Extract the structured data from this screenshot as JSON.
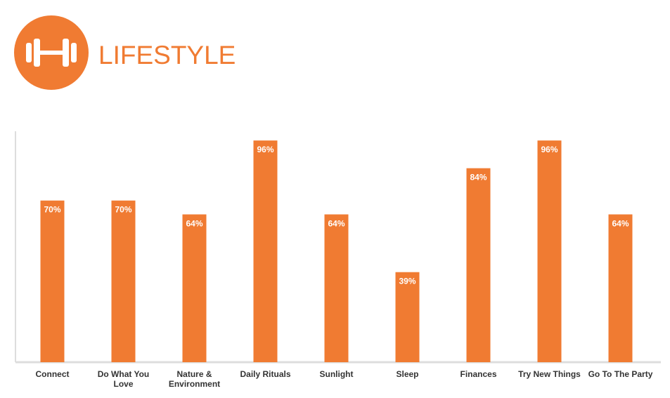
{
  "chart_data": {
    "type": "bar",
    "title": "LIFESTYLE",
    "categories": [
      "Connect",
      "Do What You Love",
      "Nature & Environment",
      "Daily Rituals",
      "Sunlight",
      "Sleep",
      "Finances",
      "Try New Things",
      "Go To The Party"
    ],
    "values": [
      70,
      70,
      64,
      96,
      64,
      39,
      84,
      96,
      64
    ],
    "value_labels": [
      "70%",
      "70%",
      "64%",
      "96%",
      "64%",
      "39%",
      "84%",
      "96%",
      "64%"
    ],
    "color": "#f07b32",
    "ylim": [
      0,
      100
    ]
  }
}
